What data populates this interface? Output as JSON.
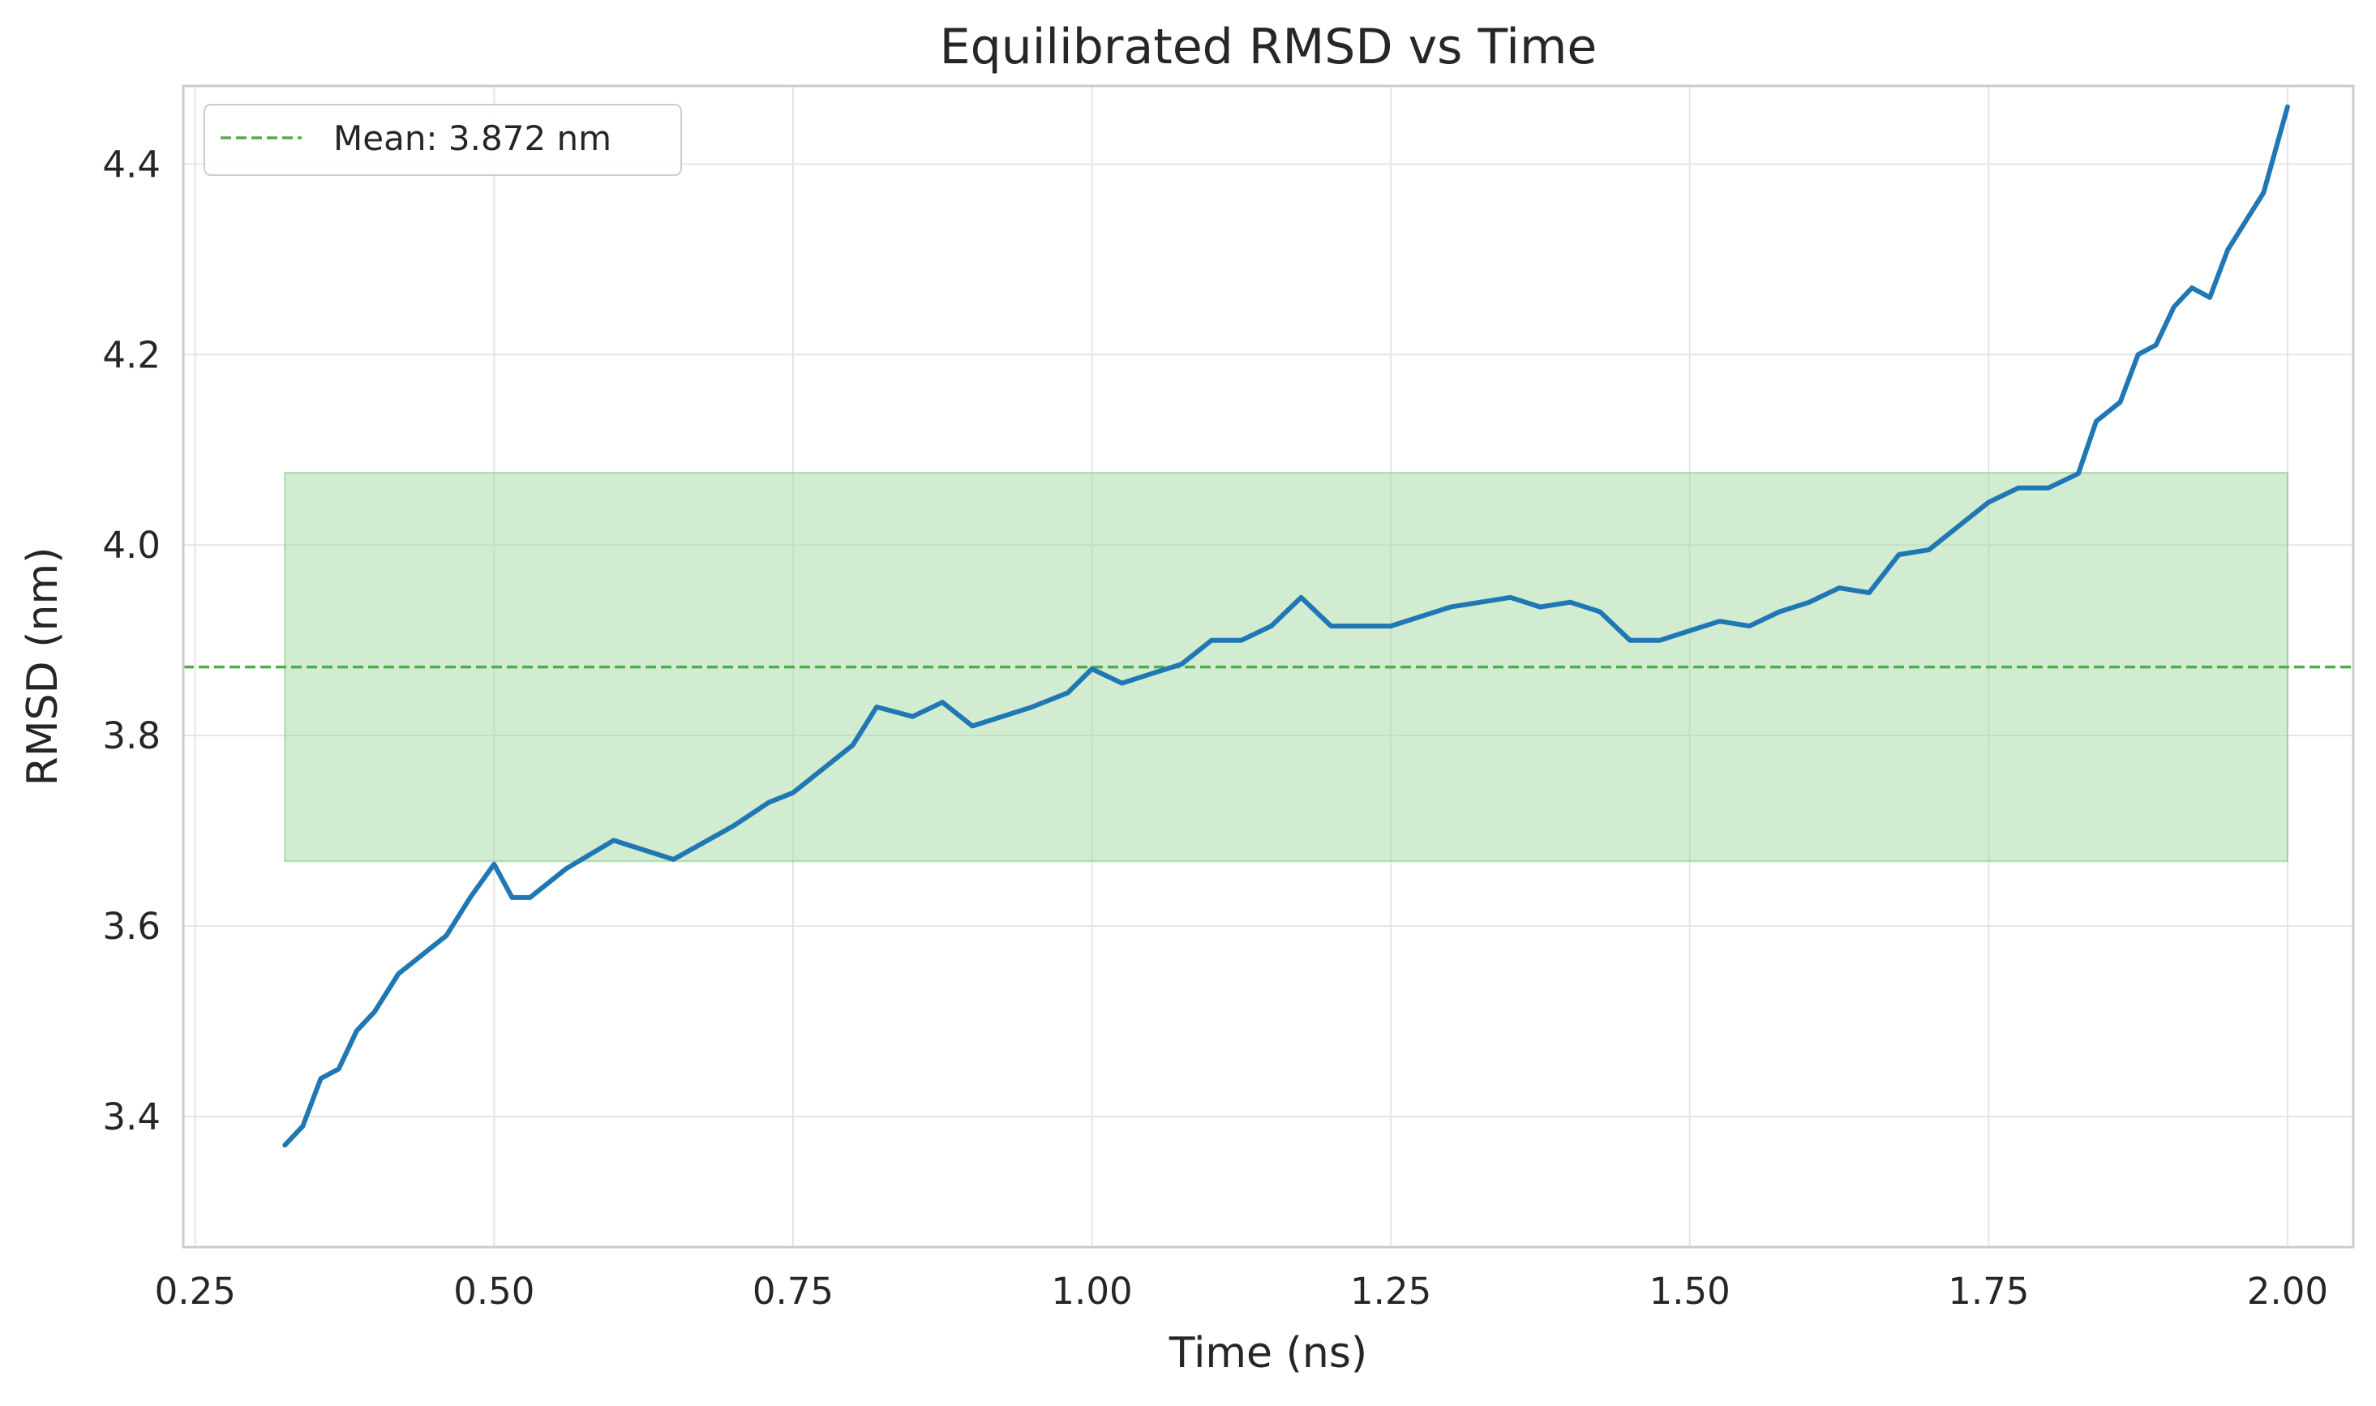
{
  "chart_data": {
    "type": "line",
    "title": "Equilibrated RMSD vs Time",
    "xlabel": "Time (ns)",
    "ylabel": "RMSD (nm)",
    "xlim": [
      0.24,
      2.055
    ],
    "ylim": [
      3.263,
      4.482
    ],
    "xticks": [
      0.25,
      0.5,
      0.75,
      1.0,
      1.25,
      1.5,
      1.75,
      2.0
    ],
    "xtick_labels": [
      "0.25",
      "0.50",
      "0.75",
      "1.00",
      "1.25",
      "1.50",
      "1.75",
      "2.00"
    ],
    "yticks": [
      3.4,
      3.6,
      3.8,
      4.0,
      4.2,
      4.4
    ],
    "ytick_labels": [
      "3.4",
      "3.6",
      "3.8",
      "4.0",
      "4.2",
      "4.4"
    ],
    "grid": true,
    "legend_position": "top-left",
    "colors": {
      "line": "#1f77b4",
      "mean": "#4daf4a",
      "band_fill": "#a6d9a4",
      "band_edge": "#66bb66"
    },
    "band": {
      "x": [
        0.325,
        2.0
      ],
      "y": [
        3.668,
        4.076
      ]
    },
    "mean": {
      "value": 3.872,
      "label": "Mean: 3.872 nm"
    },
    "series": [
      {
        "x": [
          0.325,
          0.34,
          0.355,
          0.37,
          0.385,
          0.4,
          0.42,
          0.44,
          0.46,
          0.48,
          0.5,
          0.515,
          0.53,
          0.56,
          0.6,
          0.65,
          0.7,
          0.73,
          0.75,
          0.77,
          0.8,
          0.82,
          0.85,
          0.875,
          0.9,
          0.95,
          0.98,
          1.0,
          1.025,
          1.05,
          1.075,
          1.1,
          1.125,
          1.15,
          1.175,
          1.2,
          1.25,
          1.3,
          1.35,
          1.375,
          1.4,
          1.425,
          1.45,
          1.475,
          1.5,
          1.525,
          1.55,
          1.575,
          1.6,
          1.625,
          1.65,
          1.675,
          1.7,
          1.725,
          1.75,
          1.775,
          1.8,
          1.825,
          1.84,
          1.86,
          1.875,
          1.89,
          1.905,
          1.92,
          1.935,
          1.95,
          1.965,
          1.98,
          2.0
        ],
        "y": [
          3.37,
          3.39,
          3.44,
          3.45,
          3.49,
          3.51,
          3.55,
          3.57,
          3.59,
          3.63,
          3.665,
          3.63,
          3.63,
          3.66,
          3.69,
          3.67,
          3.705,
          3.73,
          3.74,
          3.76,
          3.79,
          3.83,
          3.82,
          3.835,
          3.81,
          3.83,
          3.845,
          3.87,
          3.855,
          3.865,
          3.875,
          3.9,
          3.9,
          3.915,
          3.945,
          3.915,
          3.915,
          3.935,
          3.945,
          3.935,
          3.94,
          3.93,
          3.9,
          3.9,
          3.91,
          3.92,
          3.915,
          3.93,
          3.94,
          3.955,
          3.95,
          3.99,
          3.995,
          4.02,
          4.045,
          4.06,
          4.06,
          4.075,
          4.13,
          4.15,
          4.2,
          4.21,
          4.25,
          4.27,
          4.26,
          4.31,
          4.34,
          4.37,
          4.46
        ]
      }
    ]
  }
}
